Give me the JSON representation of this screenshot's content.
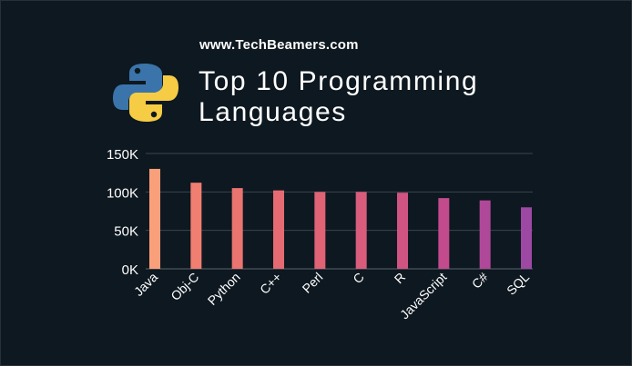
{
  "header": {
    "site": "www.TechBeamers.com",
    "title_line1": "Top 10 Programming",
    "title_line2": "Languages",
    "logo_icon": "python-logo-icon"
  },
  "chart_data": {
    "type": "bar",
    "categories": [
      "Java",
      "Obj-C",
      "Python",
      "C++",
      "Perl",
      "C",
      "R",
      "JavaScript",
      "C#",
      "SQL"
    ],
    "values": [
      130000,
      112000,
      105000,
      102000,
      100000,
      100000,
      99000,
      92000,
      89000,
      80000
    ],
    "yticks": [
      0,
      50000,
      100000,
      150000
    ],
    "ytick_labels": [
      "0K",
      "50K",
      "100K",
      "150K"
    ],
    "ylim": [
      0,
      150000
    ],
    "grid": true,
    "colors": [
      "#f9a07a",
      "#f07f72",
      "#ea7470",
      "#e66a72",
      "#e06275",
      "#d95c7c",
      "#d05482",
      "#c24b8e",
      "#b04899",
      "#9d49a3"
    ]
  }
}
